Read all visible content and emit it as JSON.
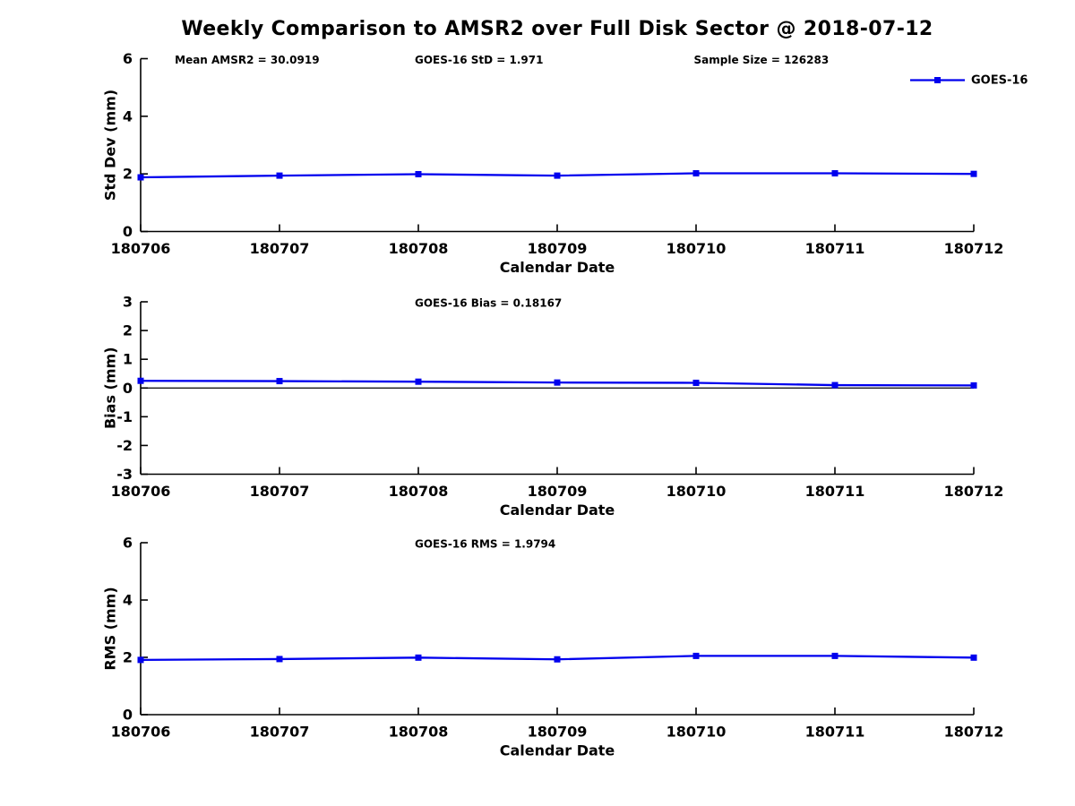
{
  "title": "Weekly Comparison to AMSR2 over Full Disk Sector @ 2018-07-12",
  "colors": {
    "line": "#0000EE",
    "axis": "#000000",
    "background": "#FFFFFF",
    "text": "#000000"
  },
  "legend": {
    "label": "GOES-16",
    "marker": "square-icon"
  },
  "x_label": "Calendar Date",
  "x_categories": [
    "180706",
    "180707",
    "180708",
    "180709",
    "180710",
    "180711",
    "180712"
  ],
  "chart_data": [
    {
      "type": "line",
      "title": "",
      "ylabel": "Std Dev (mm)",
      "xlabel": "Calendar Date",
      "x": [
        "180706",
        "180707",
        "180708",
        "180709",
        "180710",
        "180711",
        "180712"
      ],
      "series": [
        {
          "name": "GOES-16",
          "values": [
            1.88,
            1.94,
            1.99,
            1.94,
            2.02,
            2.02,
            2.0
          ]
        }
      ],
      "ylim": [
        0,
        6
      ],
      "yticks": [
        0,
        2,
        4,
        6
      ],
      "grid": false,
      "zero_line": false,
      "show_legend": true,
      "legend_position": "top-right",
      "annotations": [
        "Mean AMSR2 = 30.0919",
        "GOES-16 StD = 1.971",
        "Sample Size = 126283"
      ]
    },
    {
      "type": "line",
      "title": "",
      "ylabel": "Bias (mm)",
      "xlabel": "Calendar Date",
      "x": [
        "180706",
        "180707",
        "180708",
        "180709",
        "180710",
        "180711",
        "180712"
      ],
      "series": [
        {
          "name": "GOES-16",
          "values": [
            0.25,
            0.24,
            0.22,
            0.19,
            0.18,
            0.1,
            0.09
          ]
        }
      ],
      "ylim": [
        -3,
        3
      ],
      "yticks": [
        -3,
        -2,
        -1,
        0,
        1,
        2,
        3
      ],
      "grid": false,
      "zero_line": true,
      "show_legend": false,
      "annotations": [
        "GOES-16 Bias  = 0.18167"
      ]
    },
    {
      "type": "line",
      "title": "",
      "ylabel": "RMS (mm)",
      "xlabel": "Calendar Date",
      "x": [
        "180706",
        "180707",
        "180708",
        "180709",
        "180710",
        "180711",
        "180712"
      ],
      "series": [
        {
          "name": "GOES-16",
          "values": [
            1.91,
            1.94,
            1.99,
            1.93,
            2.05,
            2.05,
            1.99
          ]
        }
      ],
      "ylim": [
        0,
        6
      ],
      "yticks": [
        0,
        2,
        4,
        6
      ],
      "grid": false,
      "zero_line": false,
      "show_legend": false,
      "annotations": [
        "GOES-16 RMS = 1.9794"
      ]
    }
  ]
}
